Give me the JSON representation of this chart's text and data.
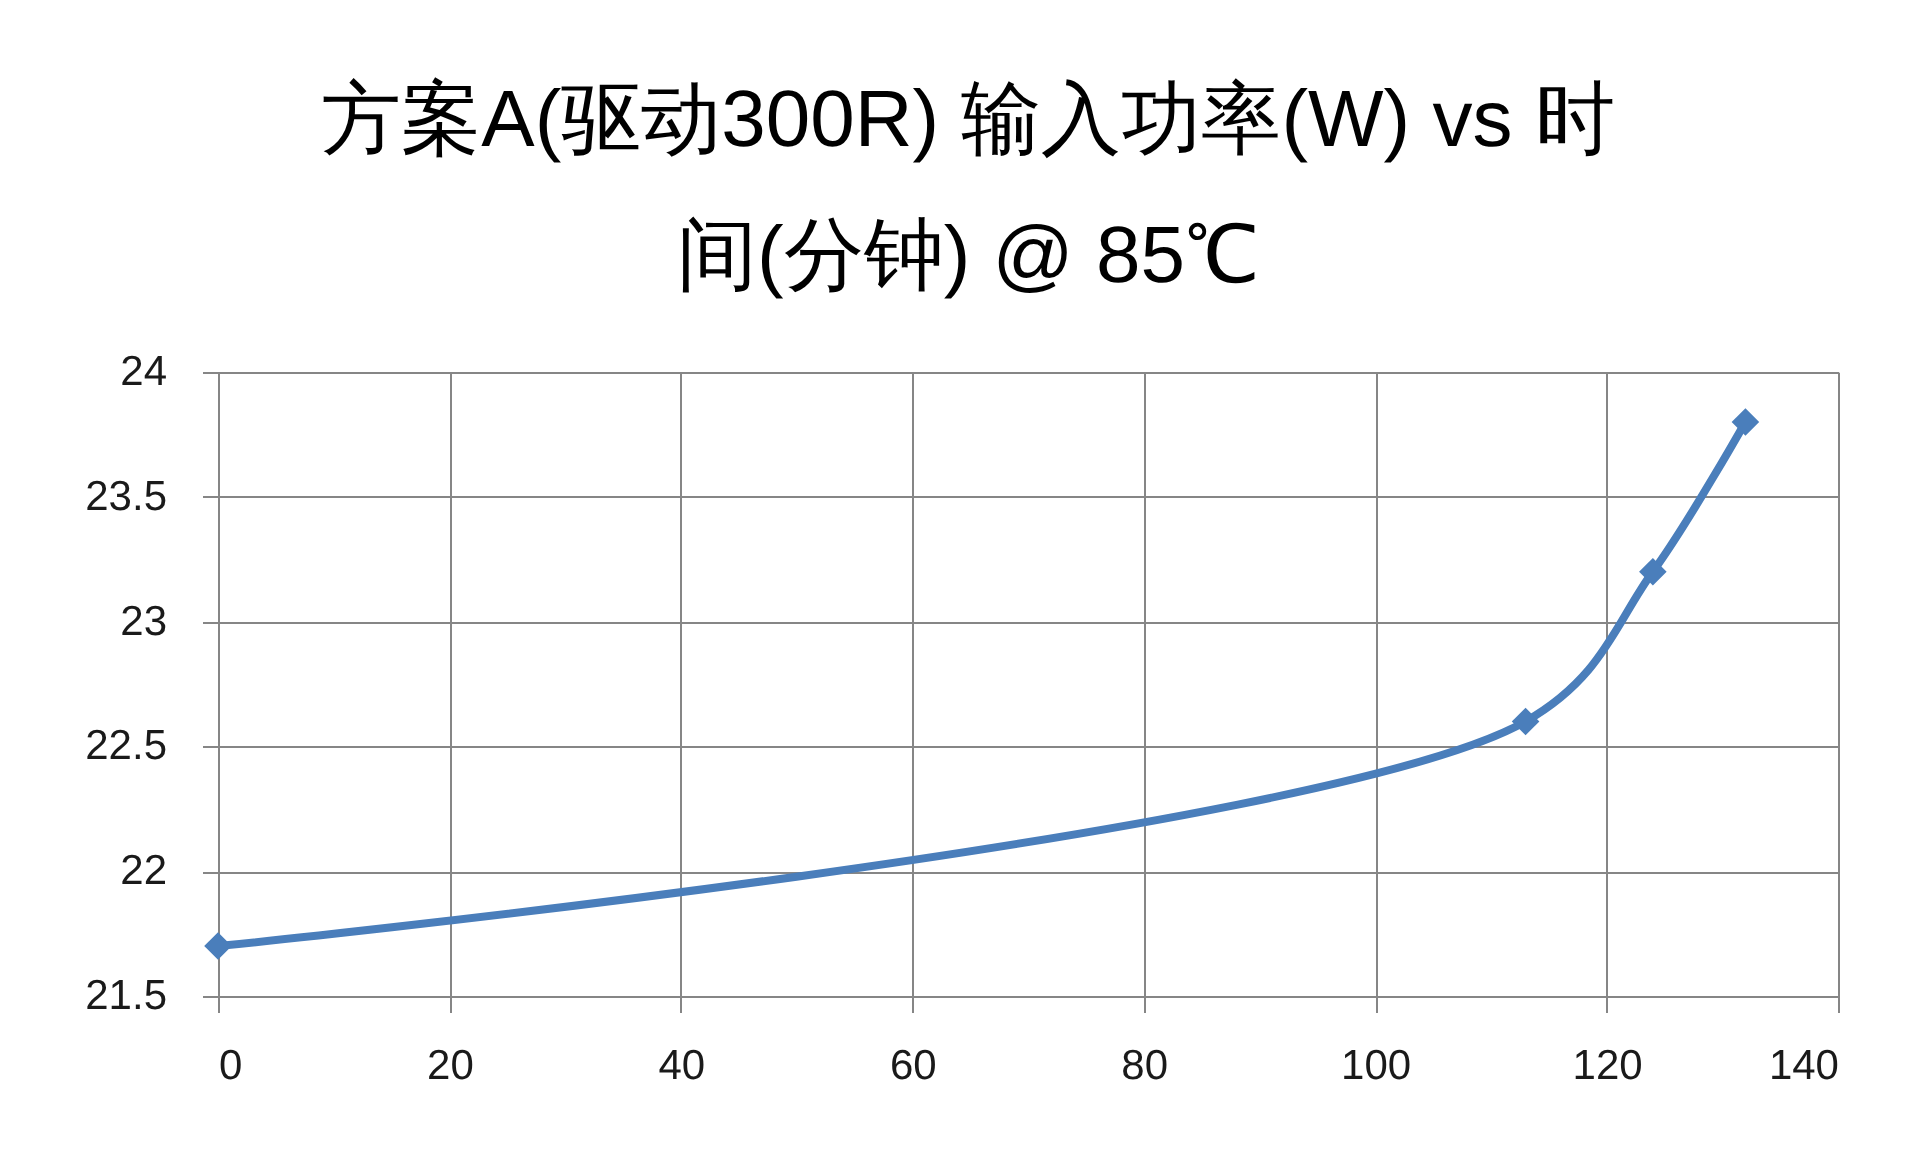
{
  "chart_data": {
    "type": "line",
    "title": "方案A(驱动300R) 输入功率(W) vs 时间(分钟) @ 85℃",
    "x": [
      0,
      113,
      124,
      132
    ],
    "series": [
      {
        "color": "#4a7ebb",
        "values": [
          21.7,
          22.6,
          23.2,
          23.8
        ]
      }
    ],
    "xlim": [
      0,
      140
    ],
    "xticks": [
      0,
      20,
      40,
      60,
      80,
      100,
      120,
      140
    ],
    "ylim": [
      21.5,
      24
    ],
    "yticks": [
      21.5,
      22,
      22.5,
      23,
      23.5,
      24
    ],
    "grid": true,
    "marker": "diamond",
    "line_style": "solid"
  }
}
